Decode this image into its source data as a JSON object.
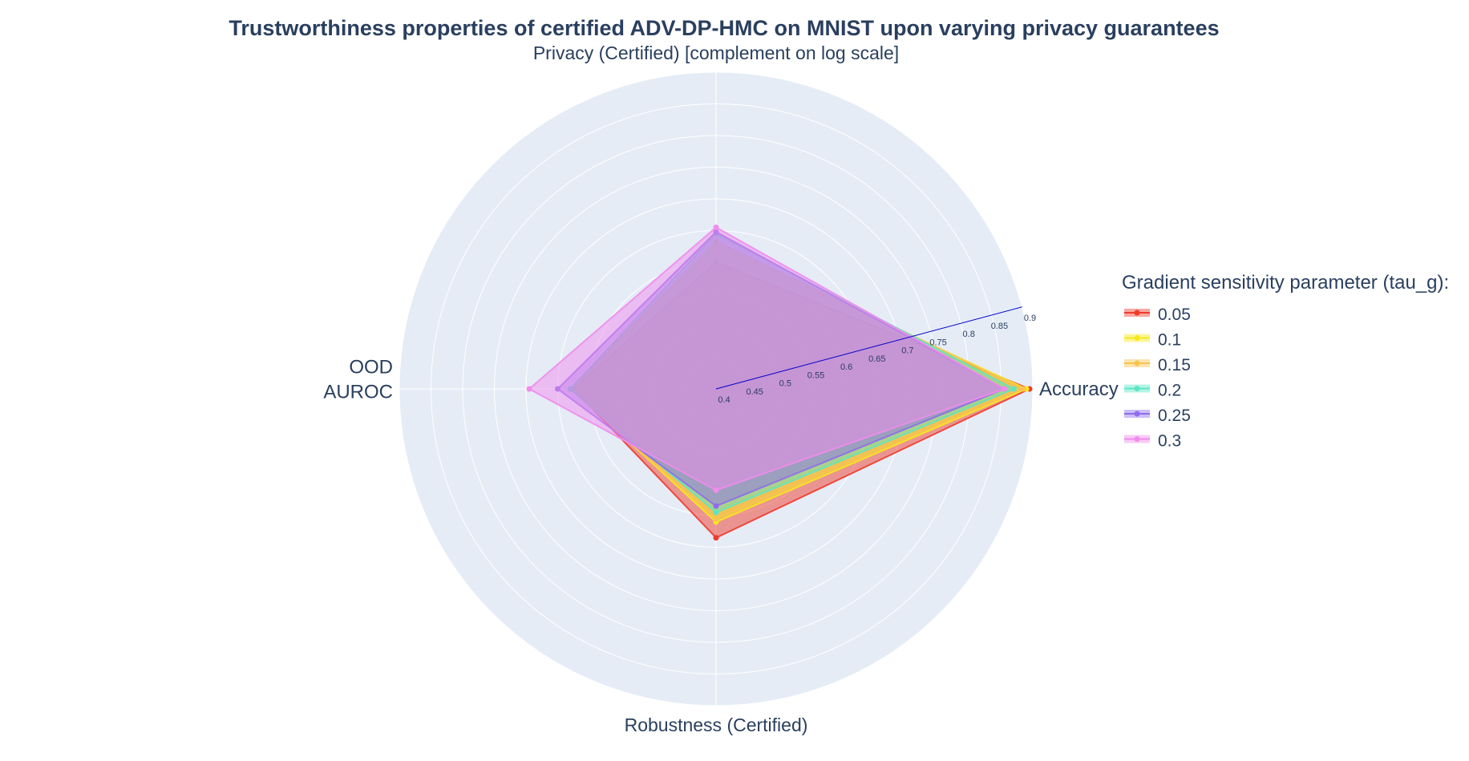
{
  "chart_data": {
    "type": "radar",
    "title": "Trustworthiness properties of certified ADV-DP-HMC on MNIST upon varying privacy guarantees",
    "axes": [
      {
        "name": "Accuracy",
        "lines": [
          "Accuracy"
        ]
      },
      {
        "name": "Privacy (Certified) [complement on log scale]",
        "lines": [
          "Privacy (Certified) [complement on log scale]"
        ]
      },
      {
        "name": "OOD AUROC",
        "lines": [
          "OOD",
          "AUROC"
        ]
      },
      {
        "name": "Robustness (Certified)",
        "lines": [
          "Robustness (Certified)"
        ]
      }
    ],
    "radial_range": [
      0.4,
      0.9
    ],
    "radial_ticks": [
      "0.4",
      "0.45",
      "0.5",
      "0.55",
      "0.6",
      "0.65",
      "0.7",
      "0.75",
      "0.8",
      "0.85",
      "0.9"
    ],
    "radial_tick_values": [
      0.4,
      0.45,
      0.5,
      0.55,
      0.6,
      0.65,
      0.7,
      0.75,
      0.8,
      0.85,
      0.9
    ],
    "radial_axis_angle_deg": 15,
    "legend": {
      "title": "Gradient sensitivity parameter (tau_g):",
      "placement": "right"
    },
    "series": [
      {
        "name": "0.05",
        "color": "#ef3b2c",
        "values": [
          0.895,
          0.6,
          0.625,
          0.635
        ]
      },
      {
        "name": "0.1",
        "color": "#f7e81e",
        "values": [
          0.89,
          0.627,
          0.628,
          0.61
        ]
      },
      {
        "name": "0.15",
        "color": "#f6c44f",
        "values": [
          0.885,
          0.633,
          0.63,
          0.605
        ]
      },
      {
        "name": "0.2",
        "color": "#5ee6c4",
        "values": [
          0.87,
          0.645,
          0.63,
          0.595
        ]
      },
      {
        "name": "0.25",
        "color": "#8f6cf0",
        "values": [
          0.855,
          0.648,
          0.65,
          0.585
        ]
      },
      {
        "name": "0.3",
        "color": "#f08cec",
        "values": [
          0.855,
          0.655,
          0.695,
          0.56
        ]
      }
    ]
  }
}
